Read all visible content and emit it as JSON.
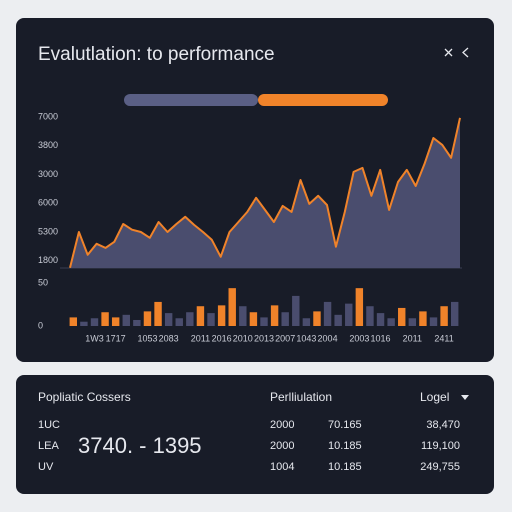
{
  "header": {
    "title": "Evalutlation: to performance"
  },
  "chart_data": [
    {
      "type": "area",
      "color": "#f0832a",
      "fill": "#4a4d6e",
      "ylim": [
        1750,
        7000
      ],
      "yticks": [
        7000,
        {
          "value": 6000,
          "label": "3800"
        },
        {
          "value": 5000,
          "label": "3000"
        },
        {
          "value": 4000,
          "label": "6000"
        },
        {
          "value": 3000,
          "label": "5300"
        },
        {
          "value": 2000,
          "label": "1800"
        }
      ],
      "values": [
        1760,
        3000,
        2210,
        2590,
        2450,
        2660,
        3280,
        3080,
        3000,
        2800,
        3350,
        3000,
        3280,
        3530,
        3250,
        3000,
        2730,
        2140,
        3000,
        3350,
        3700,
        4190,
        3770,
        3350,
        3910,
        3700,
        4810,
        3980,
        4260,
        3940,
        2490,
        3700,
        5090,
        5230,
        4260,
        5160,
        3770,
        4740,
        5160,
        4600,
        5370,
        6270,
        6030,
        5580,
        6970
      ]
    },
    {
      "type": "bar",
      "ylim": [
        0,
        50
      ],
      "yticks": [
        50,
        0
      ],
      "categories": [
        null,
        null,
        "1W3",
        null,
        "1717",
        null,
        null,
        "1053",
        null,
        "2083",
        null,
        null,
        "2011",
        null,
        "2016",
        null,
        "2010",
        null,
        "2013",
        null,
        "2007",
        null,
        "1043",
        null,
        "2004",
        null,
        null,
        "2003",
        null,
        "1016",
        null,
        null,
        "2011",
        null,
        null,
        "2411",
        null
      ],
      "values": [
        10,
        5,
        9,
        16,
        10,
        13,
        7,
        17,
        28,
        15,
        9,
        16,
        23,
        15,
        24,
        44,
        23,
        16,
        10,
        24,
        16,
        35,
        9,
        17,
        28,
        13,
        26,
        44,
        23,
        15,
        9,
        21,
        9,
        17,
        10,
        23,
        28
      ],
      "colors": [
        "#f0832a",
        "#4a4d6e",
        "#4a4d6e",
        "#f0832a",
        "#f0832a",
        "#4a4d6e",
        "#4a4d6e",
        "#f0832a",
        "#f0832a",
        "#4a4d6e",
        "#4a4d6e",
        "#4a4d6e",
        "#f0832a",
        "#4a4d6e",
        "#f0832a",
        "#f0832a",
        "#4a4d6e",
        "#f0832a",
        "#4a4d6e",
        "#f0832a",
        "#4a4d6e",
        "#4a4d6e",
        "#4a4d6e",
        "#f0832a",
        "#4a4d6e",
        "#4a4d6e",
        "#4a4d6e",
        "#f0832a",
        "#4a4d6e",
        "#4a4d6e",
        "#4a4d6e",
        "#f0832a",
        "#4a4d6e",
        "#f0832a",
        "#4a4d6e",
        "#f0832a",
        "#4a4d6e"
      ]
    }
  ],
  "table": {
    "title": "Popliatic Cossers",
    "columns": [
      "Perlliulation",
      "Logel"
    ],
    "highlight": "3740. - 1395",
    "rows": [
      [
        "1UC",
        "2000",
        "70.165",
        "38,470"
      ],
      [
        "LEA",
        "2000",
        "10.185",
        "119,100"
      ],
      [
        "UV",
        "1004",
        "10.185",
        "249,755"
      ]
    ]
  }
}
